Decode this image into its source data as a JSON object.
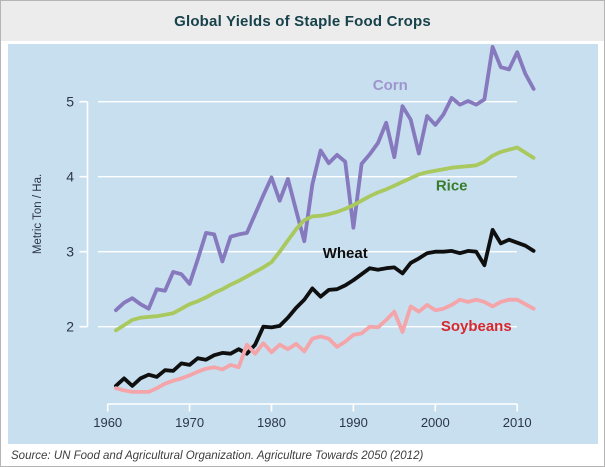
{
  "header": {
    "title": "Global Yields of Staple Food Crops"
  },
  "footer": {
    "source": "Source: UN Food and Agricultural Organization. Agriculture Towards 2050 (2012)"
  },
  "colors": {
    "panel_background": "#c8dff0",
    "title_bar_background": "#ececec",
    "title_text": "#17424b",
    "grid_and_axis": "#ffffff",
    "tick_text": "#2b3648",
    "source_text": "#3d3d3d"
  },
  "chart_data": {
    "type": "line",
    "title": "Global Yields of Staple Food Crops",
    "xlabel": "",
    "ylabel": "Metric Ton / Ha.",
    "x_tick_labels": [
      "1960",
      "1970",
      "1980",
      "1990",
      "2000",
      "2010"
    ],
    "x_ticks": [
      1960,
      1970,
      1980,
      1990,
      2000,
      2010
    ],
    "y_tick_labels": [
      "2",
      "3",
      "4",
      "5"
    ],
    "y_ticks": [
      2,
      3,
      4,
      5
    ],
    "x_axis_range": [
      1960,
      2010
    ],
    "ylim": [
      1.0,
      5.8
    ],
    "grid": "horizontal-white-lines",
    "legend_position": "inline-labels-on-chart",
    "years": [
      1961,
      1962,
      1963,
      1964,
      1965,
      1966,
      1967,
      1968,
      1969,
      1970,
      1971,
      1972,
      1973,
      1974,
      1975,
      1976,
      1977,
      1978,
      1979,
      1980,
      1981,
      1982,
      1983,
      1984,
      1985,
      1986,
      1987,
      1988,
      1989,
      1990,
      1991,
      1992,
      1993,
      1994,
      1995,
      1996,
      1997,
      1998,
      1999,
      2000,
      2001,
      2002,
      2003,
      2004,
      2005,
      2006,
      2007,
      2008,
      2009,
      2010,
      2011,
      2012
    ],
    "series": [
      {
        "name": "Corn",
        "line_color": "#8679bd",
        "label_color": "#9e95ce",
        "label_at": {
          "year": 1994.5,
          "value": 5.22
        },
        "values": [
          2.22,
          2.32,
          2.38,
          2.3,
          2.24,
          2.5,
          2.48,
          2.73,
          2.7,
          2.57,
          2.9,
          3.25,
          3.23,
          2.87,
          3.2,
          3.23,
          3.25,
          3.5,
          3.75,
          3.99,
          3.68,
          3.97,
          3.55,
          3.14,
          3.9,
          4.35,
          4.18,
          4.29,
          4.2,
          3.32,
          4.17,
          4.3,
          4.45,
          4.72,
          4.26,
          4.94,
          4.76,
          4.31,
          4.81,
          4.69,
          4.83,
          5.05,
          4.96,
          5.01,
          4.96,
          5.03,
          5.73,
          5.46,
          5.43,
          5.66,
          5.37,
          5.17
        ]
      },
      {
        "name": "Rice",
        "line_color": "#a9c85e",
        "label_color": "#377d2c",
        "label_at": {
          "year": 2002,
          "value": 3.88
        },
        "values": [
          1.95,
          2.02,
          2.09,
          2.12,
          2.13,
          2.14,
          2.16,
          2.18,
          2.24,
          2.3,
          2.34,
          2.39,
          2.45,
          2.5,
          2.56,
          2.61,
          2.67,
          2.73,
          2.79,
          2.86,
          3.0,
          3.15,
          3.3,
          3.42,
          3.47,
          3.48,
          3.5,
          3.53,
          3.57,
          3.62,
          3.68,
          3.74,
          3.79,
          3.83,
          3.88,
          3.93,
          3.98,
          4.03,
          4.06,
          4.08,
          4.1,
          4.12,
          4.13,
          4.14,
          4.15,
          4.2,
          4.28,
          4.33,
          4.36,
          4.39,
          4.32,
          4.25
        ]
      },
      {
        "name": "Wheat",
        "line_color": "#0f0f0f",
        "label_color": "#0e0e0e",
        "label_at": {
          "year": 1989,
          "value": 2.98
        },
        "values": [
          1.21,
          1.31,
          1.21,
          1.31,
          1.36,
          1.33,
          1.42,
          1.41,
          1.51,
          1.49,
          1.58,
          1.56,
          1.62,
          1.65,
          1.64,
          1.7,
          1.64,
          1.76,
          2.0,
          1.99,
          2.01,
          2.12,
          2.25,
          2.36,
          2.51,
          2.4,
          2.49,
          2.5,
          2.55,
          2.62,
          2.7,
          2.78,
          2.76,
          2.78,
          2.79,
          2.71,
          2.85,
          2.91,
          2.98,
          3.0,
          3.0,
          3.01,
          2.98,
          3.01,
          3.0,
          2.82,
          3.29,
          3.11,
          3.16,
          3.12,
          3.08,
          3.01
        ]
      },
      {
        "name": "Soybeans",
        "line_color": "#f3a5a9",
        "label_color": "#d7282e",
        "label_at": {
          "year": 2005,
          "value": 2.01
        },
        "values": [
          1.18,
          1.15,
          1.13,
          1.13,
          1.13,
          1.18,
          1.24,
          1.28,
          1.31,
          1.35,
          1.4,
          1.44,
          1.46,
          1.43,
          1.49,
          1.46,
          1.76,
          1.64,
          1.78,
          1.66,
          1.76,
          1.7,
          1.77,
          1.67,
          1.84,
          1.87,
          1.84,
          1.73,
          1.8,
          1.89,
          1.91,
          2.0,
          1.99,
          2.09,
          2.2,
          1.93,
          2.27,
          2.2,
          2.29,
          2.22,
          2.24,
          2.29,
          2.36,
          2.33,
          2.36,
          2.33,
          2.27,
          2.33,
          2.36,
          2.36,
          2.3,
          2.24
        ]
      }
    ]
  }
}
